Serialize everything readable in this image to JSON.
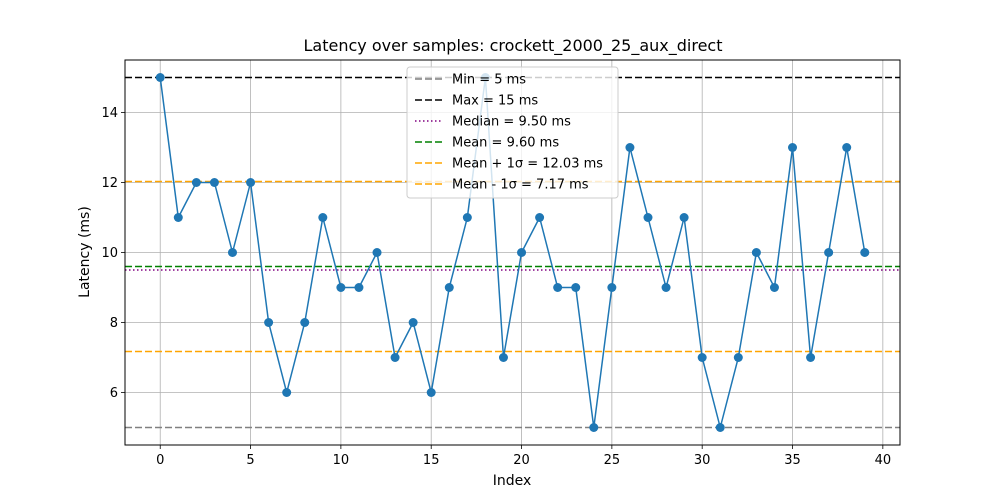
{
  "chart_data": {
    "type": "line",
    "title": "Latency over samples: crockett_2000_25_aux_direct",
    "xlabel": "Index",
    "ylabel": "Latency (ms)",
    "xlim": [
      -1.95,
      40.95
    ],
    "ylim": [
      4.5,
      15.5
    ],
    "xticks": [
      0,
      5,
      10,
      15,
      20,
      25,
      30,
      35,
      40
    ],
    "yticks": [
      6,
      8,
      10,
      12,
      14
    ],
    "grid": true,
    "legend_position": "upper center",
    "series": [
      {
        "color": "#1f77b4",
        "x": [
          0,
          1,
          2,
          3,
          4,
          5,
          6,
          7,
          8,
          9,
          10,
          11,
          12,
          13,
          14,
          15,
          16,
          17,
          18,
          19,
          20,
          21,
          22,
          23,
          24,
          25,
          26,
          27,
          28,
          29,
          30,
          31,
          32,
          33,
          34,
          35,
          36,
          37,
          38,
          39
        ],
        "values": [
          15,
          11,
          12,
          12,
          10,
          12,
          8,
          6,
          8,
          11,
          9,
          9,
          10,
          7,
          8,
          6,
          9,
          11,
          15,
          7,
          10,
          11,
          9,
          9,
          5,
          9,
          13,
          11,
          9,
          11,
          7,
          5,
          7,
          10,
          9,
          13,
          7,
          10,
          13,
          10
        ]
      }
    ],
    "reference_lines": [
      {
        "label": "Min = 5 ms",
        "value": 5,
        "color": "#808080",
        "dash": "dashed"
      },
      {
        "label": "Max = 15 ms",
        "value": 15,
        "color": "#000000",
        "dash": "dashed"
      },
      {
        "label": "Median = 9.50 ms",
        "value": 9.5,
        "color": "#800080",
        "dash": "dotted"
      },
      {
        "label": "Mean = 9.60 ms",
        "value": 9.6,
        "color": "#008000",
        "dash": "dashed"
      },
      {
        "label": "Mean + 1σ = 12.03 ms",
        "value": 12.03,
        "color": "#ffa500",
        "dash": "dashed"
      },
      {
        "label": "Mean - 1σ = 7.17 ms",
        "value": 7.17,
        "color": "#ffa500",
        "dash": "dashed"
      }
    ]
  }
}
